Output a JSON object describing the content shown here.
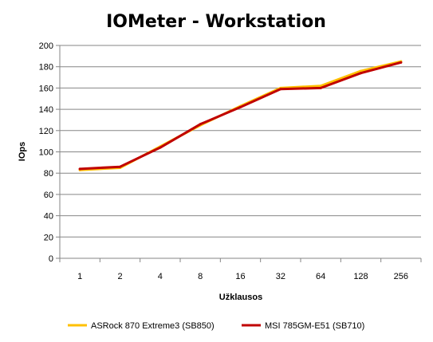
{
  "chart_data": {
    "type": "line",
    "title": "IOMeter - Workstation",
    "xlabel": "Užklausos",
    "ylabel": "IOps",
    "categories": [
      "1",
      "2",
      "4",
      "8",
      "16",
      "32",
      "64",
      "128",
      "256"
    ],
    "ylim": [
      0,
      200
    ],
    "yticks": [
      0,
      20,
      40,
      60,
      80,
      100,
      120,
      140,
      160,
      180,
      200
    ],
    "grid": true,
    "legend_position": "bottom",
    "series": [
      {
        "name": "ASRock 870 Extreme3 (SB850)",
        "color": "#FFC000",
        "values": [
          83,
          85,
          105,
          125,
          143,
          160,
          162,
          176,
          185
        ]
      },
      {
        "name": "MSI 785GM-E51 (SB710)",
        "color": "#C00000",
        "values": [
          84,
          86,
          104,
          126,
          142,
          159,
          160,
          174,
          184
        ]
      }
    ]
  }
}
